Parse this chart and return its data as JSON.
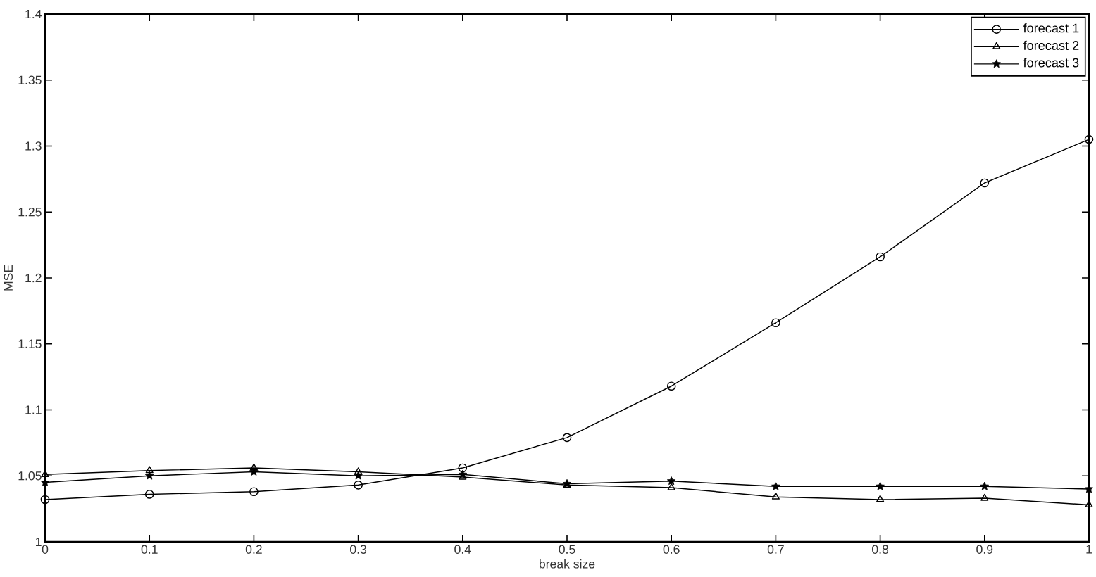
{
  "chart_data": {
    "type": "line",
    "xlabel": "break size",
    "ylabel": "MSE",
    "x": [
      0,
      0.1,
      0.2,
      0.3,
      0.4,
      0.5,
      0.6,
      0.7,
      0.8,
      0.9,
      1
    ],
    "series": [
      {
        "name": "forecast 1",
        "color": "#000000",
        "marker": "circle",
        "values": [
          1.032,
          1.036,
          1.038,
          1.043,
          1.056,
          1.079,
          1.118,
          1.166,
          1.216,
          1.272,
          1.305
        ]
      },
      {
        "name": "forecast 2",
        "color": "#000000",
        "marker": "triangle",
        "values": [
          1.051,
          1.054,
          1.056,
          1.053,
          1.049,
          1.043,
          1.041,
          1.034,
          1.032,
          1.033,
          1.028
        ]
      },
      {
        "name": "forecast 3",
        "color": "#000000",
        "marker": "star",
        "values": [
          1.045,
          1.05,
          1.053,
          1.05,
          1.051,
          1.044,
          1.046,
          1.042,
          1.042,
          1.042,
          1.04
        ]
      }
    ],
    "xlim": [
      0,
      1
    ],
    "ylim": [
      1,
      1.4
    ],
    "xticks": [
      0,
      0.1,
      0.2,
      0.3,
      0.4,
      0.5,
      0.6,
      0.7,
      0.8,
      0.9,
      1
    ],
    "yticks": [
      1,
      1.05,
      1.1,
      1.15,
      1.2,
      1.25,
      1.3,
      1.35,
      1.4
    ],
    "legend": "top right",
    "line_style": "solid"
  }
}
